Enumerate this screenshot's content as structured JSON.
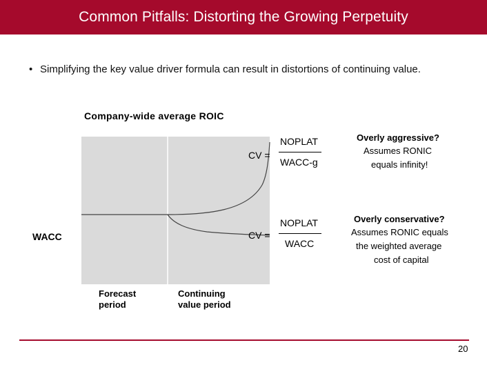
{
  "slide": {
    "title": "Common Pitfalls: Distorting the Growing Perpetuity",
    "bullet": "Simplifying the key value driver formula can result in distortions of continuing value.",
    "page_number": "20"
  },
  "chart": {
    "roic_label": "Company-wide average ROIC",
    "wacc_label": "WACC",
    "forecast_label": [
      "Forecast",
      "period"
    ],
    "continuing_label": [
      "Continuing",
      "value period"
    ]
  },
  "formula_aggressive": {
    "lhs": "CV =",
    "numerator": "NOPLAT",
    "denominator": "WACC-g",
    "heading": "Overly aggressive?",
    "lines": [
      "Assumes RONIC",
      "equals infinity!"
    ]
  },
  "formula_conservative": {
    "lhs": "CV =",
    "numerator": "NOPLAT",
    "denominator": "WACC",
    "heading": "Overly conservative?",
    "lines": [
      "Assumes RONIC equals",
      "the weighted average",
      "cost of capital"
    ]
  },
  "colors": {
    "accent": "#a50a2c",
    "chart_background": "#dadada"
  }
}
